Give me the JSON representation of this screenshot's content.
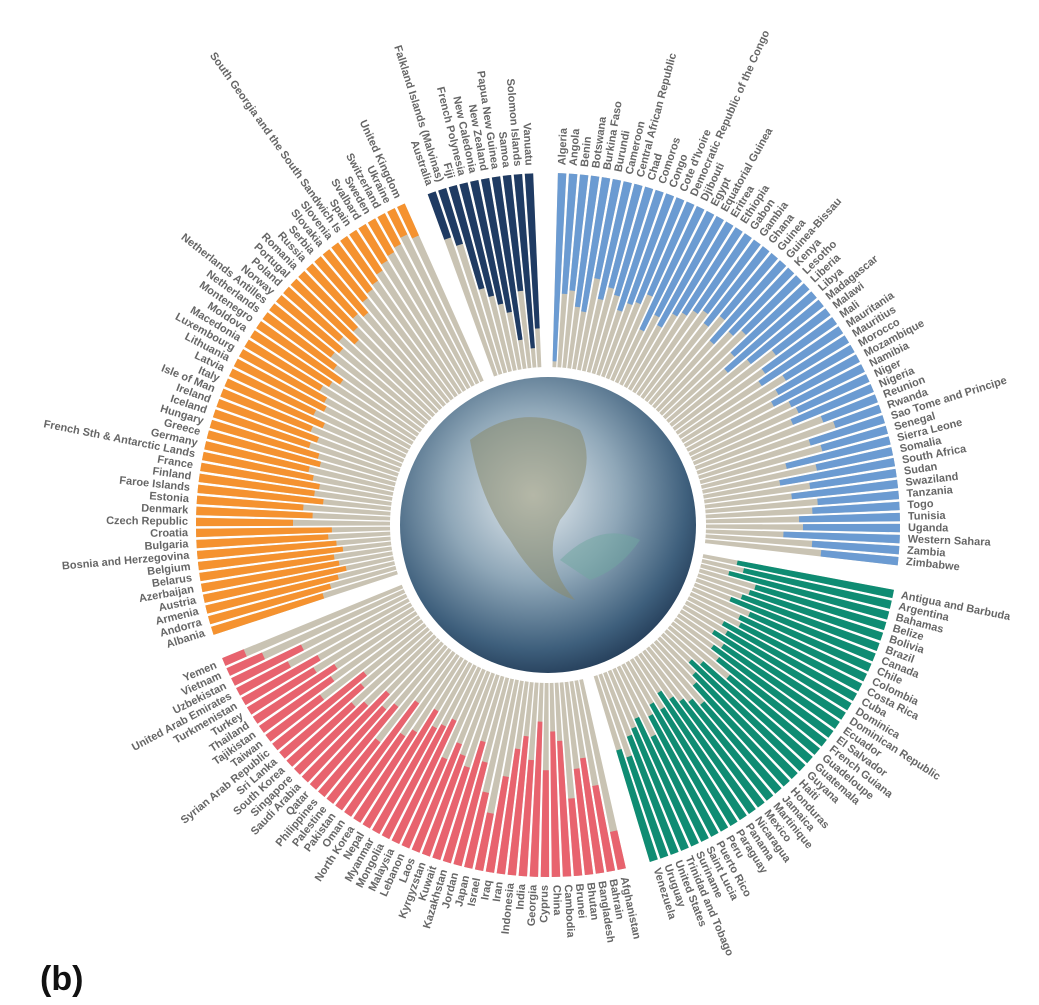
{
  "chart_data": {
    "type": "radial_bar",
    "panel_label": "(b)",
    "ylim": [
      0,
      100
    ],
    "background_color": "#c9c3b3",
    "groups": [
      {
        "color": "#1f3b63",
        "categories": [
          "Australia",
          "Falkland Islands (Malvinas)",
          "Fiji",
          "French Polynesia",
          "New Caledonia",
          "New Zealand",
          "Papua New Guinea",
          "Samoa",
          "Solomon Islands",
          "Vanuatu"
        ],
        "values": [
          25,
          30,
          55,
          60,
          65,
          70,
          85,
          60,
          90,
          80
        ]
      },
      {
        "color": "#6b9bd2",
        "categories": [
          "Algeria",
          "Angola",
          "Benin",
          "Botswana",
          "Burkina Faso",
          "Burundi",
          "Cameroon",
          "Central African Republic",
          "Chad",
          "Comoros",
          "Congo",
          "Cote d'Ivoire",
          "Democratic Republic of the Congo",
          "Djibouti",
          "Egypt",
          "Equatorial Guinea",
          "Eritrea",
          "Ethiopia",
          "Gabon",
          "Gambia",
          "Ghana",
          "Guinea",
          "Guinea-Bissau",
          "Kenya",
          "Lesotho",
          "Liberia",
          "Libya",
          "Madagascar",
          "Malawi",
          "Mali",
          "Mauritania",
          "Mauritius",
          "Morocco",
          "Mozambique",
          "Namibia",
          "Niger",
          "Nigeria",
          "Reunion",
          "Rwanda",
          "Sao Tome and Principe",
          "Senegal",
          "Sierra Leone",
          "Somalia",
          "South Africa",
          "Sudan",
          "Swaziland",
          "Tanzania",
          "Togo",
          "Tunisia",
          "Uganda",
          "Western Sahara",
          "Zambia",
          "Zimbabwe"
        ],
        "values": [
          97,
          62,
          60,
          68,
          70,
          52,
          62,
          55,
          58,
          65,
          60,
          58,
          52,
          70,
          60,
          64,
          55,
          52,
          48,
          45,
          50,
          42,
          55,
          45,
          40,
          52,
          60,
          48,
          35,
          45,
          50,
          38,
          45,
          50,
          42,
          40,
          45,
          30,
          25,
          40,
          35,
          55,
          40,
          60,
          45,
          55,
          42,
          45,
          52,
          50,
          60,
          45,
          40
        ]
      },
      {
        "color": "#0f8c73",
        "categories": [
          "Antigua and Barbuda",
          "Argentina",
          "Bahamas",
          "Belize",
          "Bolivia",
          "Brazil",
          "Canada",
          "Chile",
          "Colombia",
          "Costa Rica",
          "Cuba",
          "Dominica",
          "Dominican Republic",
          "Ecuador",
          "El Salvador",
          "French Guiana",
          "Guadeloupe",
          "Guatemala",
          "Guyana",
          "Haiti",
          "Honduras",
          "Jamaica",
          "Martinique",
          "Mexico",
          "Nicaragua",
          "Panama",
          "Paraguay",
          "Peru",
          "Puerto Rico",
          "Saint Lucia",
          "Suriname",
          "Trinidad and Tobago",
          "United States",
          "Uruguay",
          "Venezuela"
        ],
        "values": [
          82,
          78,
          85,
          70,
          72,
          75,
          80,
          68,
          72,
          70,
          78,
          74,
          80,
          72,
          76,
          70,
          60,
          75,
          80,
          74,
          70,
          60,
          65,
          68,
          72,
          78,
          70,
          75,
          70,
          60,
          72,
          68,
          65,
          55,
          60
        ]
      },
      {
        "color": "#e8636e",
        "categories": [
          "Afghanistan",
          "Bahrain",
          "Bangladesh",
          "Bhutan",
          "Brunei",
          "Cambodia",
          "China",
          "Cyprus",
          "Georgia",
          "India",
          "Indonesia",
          "Iran",
          "Iraq",
          "Israel",
          "Japan",
          "Jordan",
          "Kazakhstan",
          "Kuwait",
          "Kyrgyzstan",
          "Laos",
          "Lebanon",
          "Malaysia",
          "Mongolia",
          "Myanmar",
          "Nepal",
          "North Korea",
          "Oman",
          "Pakistan",
          "Palestine",
          "Philippines",
          "Qatar",
          "Saudi Arabia",
          "Singapore",
          "South Korea",
          "Sri Lanka",
          "Syrian Arab Republic",
          "Taiwan",
          "Tajikistan",
          "Thailand",
          "Turkey",
          "Turkmenistan",
          "United Arab Emirates",
          "Uzbekistan",
          "Vietnam",
          "Yemen"
        ],
        "values": [
          20,
          45,
          60,
          55,
          40,
          70,
          75,
          55,
          80,
          60,
          72,
          65,
          50,
          30,
          40,
          55,
          65,
          50,
          55,
          60,
          50,
          70,
          65,
          62,
          70,
          55,
          50,
          68,
          40,
          60,
          55,
          62,
          50,
          45,
          55,
          60,
          35,
          45,
          50,
          40,
          45,
          30,
          40,
          20,
          12
        ]
      },
      {
        "color": "#f5922f",
        "categories": [
          "Albania",
          "Andorra",
          "Armenia",
          "Austria",
          "Azerbaijan",
          "Belarus",
          "Belgium",
          "Bosnia and Herzegovina",
          "Bulgaria",
          "Croatia",
          "Czech Republic",
          "Denmark",
          "Estonia",
          "Faroe Islands",
          "Finland",
          "France",
          "French Sth & Antarctic Lands",
          "Germany",
          "Greece",
          "Hungary",
          "Iceland",
          "Ireland",
          "Isle of Man",
          "Italy",
          "Latvia",
          "Lithuania",
          "Luxembourg",
          "Macedonia",
          "Moldova",
          "Montenegro",
          "Netherlands",
          "Netherlands Antilles",
          "Norway",
          "Poland",
          "Portugal",
          "Romania",
          "Russia",
          "Serbia",
          "Slovakia",
          "Slovenia",
          "South Georgia and the South Sandwich Is",
          "Spain",
          "Svalbard",
          "Sweden",
          "Switzerland",
          "Ukraine",
          "United Kingdom"
        ],
        "values": [
          60,
          65,
          70,
          75,
          72,
          70,
          75,
          72,
          68,
          70,
          50,
          60,
          55,
          65,
          60,
          62,
          58,
          55,
          60,
          58,
          52,
          55,
          50,
          55,
          48,
          52,
          50,
          45,
          48,
          52,
          45,
          40,
          42,
          38,
          45,
          40,
          35,
          38,
          32,
          30,
          28,
          25,
          22,
          20,
          18,
          15,
          18
        ]
      }
    ]
  }
}
